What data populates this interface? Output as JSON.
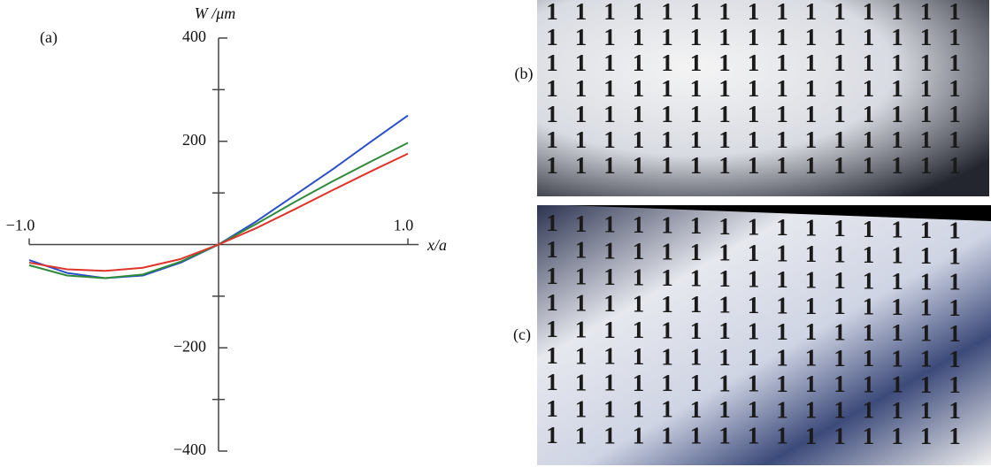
{
  "chart_data": {
    "type": "line",
    "annotations": [
      "(a)"
    ],
    "x_label": "x/a",
    "y_label": "W /μm",
    "x": [
      -1,
      -0.8,
      -0.6,
      -0.4,
      -0.2,
      0,
      0.2,
      0.4,
      0.6,
      0.8,
      1
    ],
    "series": [
      {
        "color": "#2a4fc8",
        "values": [
          -30,
          -55,
          -65,
          -60,
          -35,
          0,
          45,
          95,
          145,
          198,
          250
        ]
      },
      {
        "color": "#2f8a3a",
        "values": [
          -40,
          -60,
          -65,
          -58,
          -33,
          0,
          40,
          82,
          122,
          160,
          197
        ]
      },
      {
        "color": "#e0332b",
        "values": [
          -35,
          -48,
          -51,
          -45,
          -28,
          0,
          32,
          68,
          105,
          141,
          176
        ]
      }
    ],
    "xlim": [
      -1,
      1
    ],
    "xticks": [
      {
        "value": -1,
        "label": "−1.0"
      },
      {
        "value": 1,
        "label": "1.0"
      }
    ],
    "ylim": [
      -400,
      400
    ],
    "yticks": [
      {
        "value": -400,
        "label": "−400"
      },
      {
        "value": -200,
        "label": "−200"
      },
      200,
      400
    ],
    "yminor": [
      -300,
      -100,
      100,
      300
    ]
  },
  "photos": [
    {
      "label": "(b)",
      "glyph": "1"
    },
    {
      "label": "(c)",
      "glyph": "1"
    }
  ]
}
